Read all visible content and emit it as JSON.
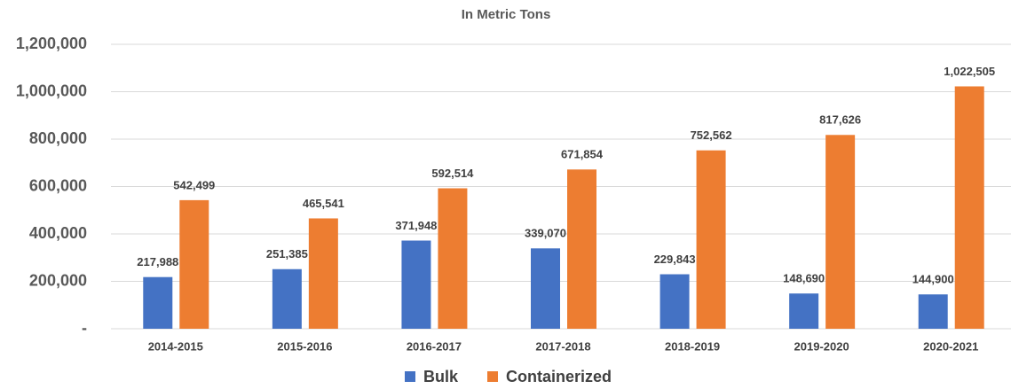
{
  "chart_data": {
    "type": "bar",
    "title": "In Metric Tons",
    "categories": [
      "2014-2015",
      "2015-2016",
      "2016-2017",
      "2017-2018",
      "2018-2019",
      "2019-2020",
      "2020-2021"
    ],
    "series": [
      {
        "name": "Bulk",
        "color": "#4472c4",
        "values": [
          217988,
          251385,
          371948,
          339070,
          229843,
          148690,
          144900
        ],
        "value_labels": [
          "217,988",
          "251,385",
          "371,948",
          "339,070",
          "229,843",
          "148,690",
          "144,900"
        ]
      },
      {
        "name": "Containerized",
        "color": "#ed7d31",
        "values": [
          542499,
          465541,
          592514,
          671854,
          752562,
          817626,
          1022505
        ],
        "value_labels": [
          "542,499",
          "465,541",
          "592,514",
          "671,854",
          "752,562",
          "817,626",
          "1,022,505"
        ]
      }
    ],
    "ylim": [
      0,
      1200000
    ],
    "yticks": [
      {
        "value": 0,
        "label": "-"
      },
      {
        "value": 200000,
        "label": "200,000"
      },
      {
        "value": 400000,
        "label": "400,000"
      },
      {
        "value": 600000,
        "label": "600,000"
      },
      {
        "value": 800000,
        "label": "800,000"
      },
      {
        "value": 1000000,
        "label": "1,000,000"
      },
      {
        "value": 1200000,
        "label": "1,200,000"
      }
    ],
    "grid": true,
    "legend": "bottom"
  }
}
